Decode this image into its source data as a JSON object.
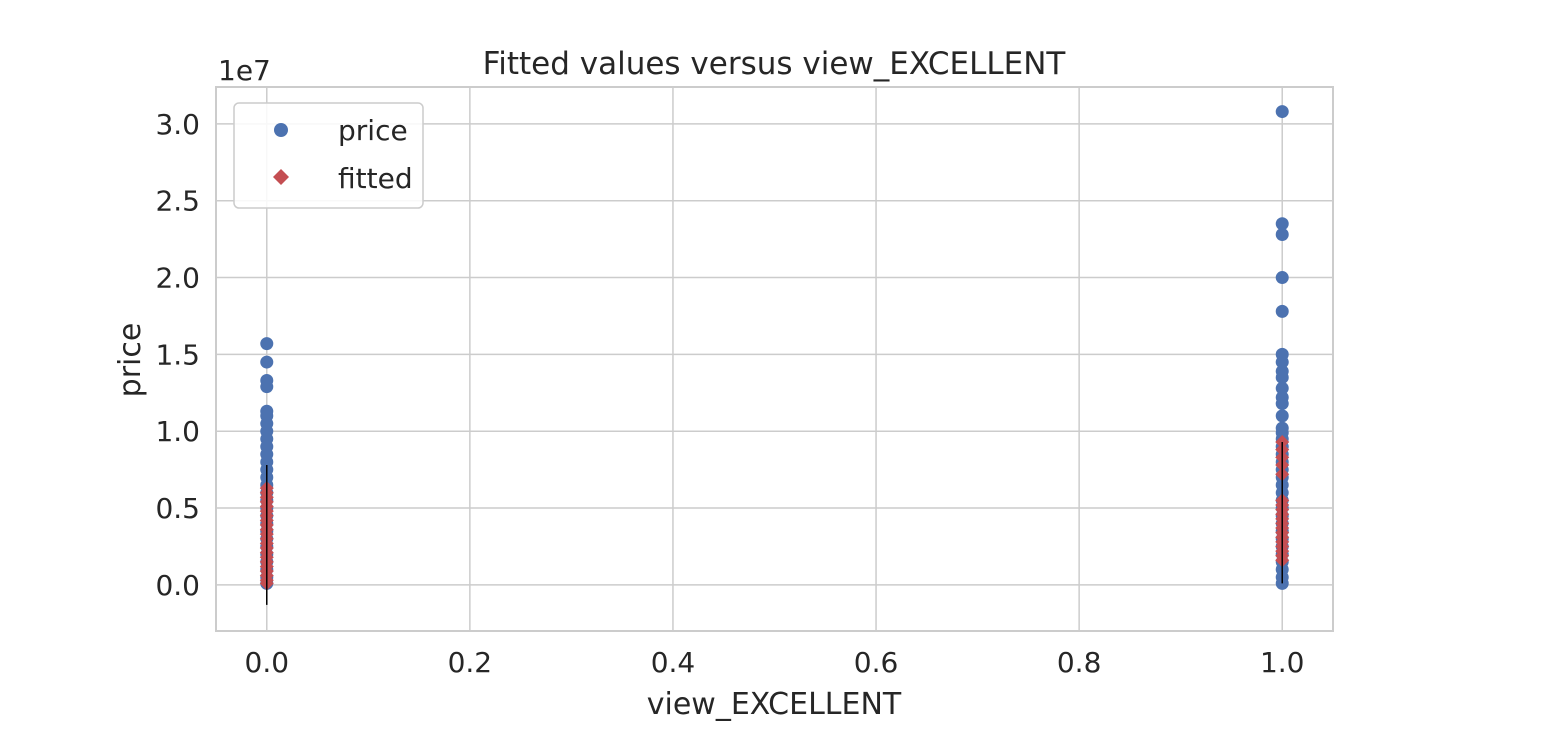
{
  "chart_data": {
    "type": "scatter",
    "title": "Fitted values versus view_EXCELLENT",
    "xlabel": "view_EXCELLENT",
    "ylabel": "price",
    "y_multiplier_label": "1e7",
    "xlim": [
      -0.05,
      1.05
    ],
    "ylim": [
      -0.3,
      3.24
    ],
    "x_ticks": [
      0.0,
      0.2,
      0.4,
      0.6,
      0.8,
      1.0
    ],
    "x_tick_labels": [
      "0.0",
      "0.2",
      "0.4",
      "0.6",
      "0.8",
      "1.0"
    ],
    "y_ticks": [
      0.0,
      0.5,
      1.0,
      1.5,
      2.0,
      2.5,
      3.0
    ],
    "y_tick_labels": [
      "0.0",
      "0.5",
      "1.0",
      "1.5",
      "2.0",
      "2.5",
      "3.0"
    ],
    "grid": true,
    "legend": {
      "position": "top-left",
      "entries": [
        {
          "name": "price",
          "marker": "circle",
          "color": "#4c72b0"
        },
        {
          "name": "fitted",
          "marker": "diamond",
          "color": "#c44e52"
        }
      ]
    },
    "series": [
      {
        "name": "price",
        "marker": "circle",
        "color": "#4c72b0",
        "points": [
          {
            "x": 0,
            "y": 1.57
          },
          {
            "x": 0,
            "y": 1.45
          },
          {
            "x": 0,
            "y": 1.33
          },
          {
            "x": 0,
            "y": 1.29
          },
          {
            "x": 0,
            "y": 1.13
          },
          {
            "x": 0,
            "y": 1.1
          },
          {
            "x": 0,
            "y": 1.05
          },
          {
            "x": 0,
            "y": 1.0
          },
          {
            "x": 0,
            "y": 0.95
          },
          {
            "x": 0,
            "y": 0.9
          },
          {
            "x": 0,
            "y": 0.85
          },
          {
            "x": 0,
            "y": 0.8
          },
          {
            "x": 0,
            "y": 0.75
          },
          {
            "x": 0,
            "y": 0.7
          },
          {
            "x": 0,
            "y": 0.65
          },
          {
            "x": 0,
            "y": 0.6
          },
          {
            "x": 0,
            "y": 0.55
          },
          {
            "x": 0,
            "y": 0.5
          },
          {
            "x": 0,
            "y": 0.45
          },
          {
            "x": 0,
            "y": 0.4
          },
          {
            "x": 0,
            "y": 0.35
          },
          {
            "x": 0,
            "y": 0.3
          },
          {
            "x": 0,
            "y": 0.25
          },
          {
            "x": 0,
            "y": 0.2
          },
          {
            "x": 0,
            "y": 0.15
          },
          {
            "x": 0,
            "y": 0.1
          },
          {
            "x": 0,
            "y": 0.05
          },
          {
            "x": 0,
            "y": 0.01
          },
          {
            "x": 1,
            "y": 3.08
          },
          {
            "x": 1,
            "y": 2.35
          },
          {
            "x": 1,
            "y": 2.28
          },
          {
            "x": 1,
            "y": 2.0
          },
          {
            "x": 1,
            "y": 1.78
          },
          {
            "x": 1,
            "y": 1.5
          },
          {
            "x": 1,
            "y": 1.45
          },
          {
            "x": 1,
            "y": 1.39
          },
          {
            "x": 1,
            "y": 1.35
          },
          {
            "x": 1,
            "y": 1.28
          },
          {
            "x": 1,
            "y": 1.22
          },
          {
            "x": 1,
            "y": 1.18
          },
          {
            "x": 1,
            "y": 1.1
          },
          {
            "x": 1,
            "y": 1.02
          },
          {
            "x": 1,
            "y": 0.99
          },
          {
            "x": 1,
            "y": 0.95
          },
          {
            "x": 1,
            "y": 0.9
          },
          {
            "x": 1,
            "y": 0.85
          },
          {
            "x": 1,
            "y": 0.8
          },
          {
            "x": 1,
            "y": 0.75
          },
          {
            "x": 1,
            "y": 0.7
          },
          {
            "x": 1,
            "y": 0.65
          },
          {
            "x": 1,
            "y": 0.6
          },
          {
            "x": 1,
            "y": 0.55
          },
          {
            "x": 1,
            "y": 0.5
          },
          {
            "x": 1,
            "y": 0.45
          },
          {
            "x": 1,
            "y": 0.4
          },
          {
            "x": 1,
            "y": 0.35
          },
          {
            "x": 1,
            "y": 0.3
          },
          {
            "x": 1,
            "y": 0.25
          },
          {
            "x": 1,
            "y": 0.2
          },
          {
            "x": 1,
            "y": 0.15
          },
          {
            "x": 1,
            "y": 0.1
          },
          {
            "x": 1,
            "y": 0.05
          },
          {
            "x": 1,
            "y": 0.01
          }
        ]
      },
      {
        "name": "fitted",
        "marker": "diamond",
        "color": "#c44e52",
        "points": [
          {
            "x": 0,
            "y": 0.63
          },
          {
            "x": 0,
            "y": 0.6
          },
          {
            "x": 0,
            "y": 0.57
          },
          {
            "x": 0,
            "y": 0.54
          },
          {
            "x": 0,
            "y": 0.51
          },
          {
            "x": 0,
            "y": 0.48
          },
          {
            "x": 0,
            "y": 0.45
          },
          {
            "x": 0,
            "y": 0.42
          },
          {
            "x": 0,
            "y": 0.39
          },
          {
            "x": 0,
            "y": 0.36
          },
          {
            "x": 0,
            "y": 0.33
          },
          {
            "x": 0,
            "y": 0.3
          },
          {
            "x": 0,
            "y": 0.27
          },
          {
            "x": 0,
            "y": 0.24
          },
          {
            "x": 0,
            "y": 0.21
          },
          {
            "x": 0,
            "y": 0.18
          },
          {
            "x": 0,
            "y": 0.15
          },
          {
            "x": 0,
            "y": 0.12
          },
          {
            "x": 0,
            "y": 0.09
          },
          {
            "x": 0,
            "y": 0.06
          },
          {
            "x": 0,
            "y": 0.03
          },
          {
            "x": 0,
            "y": 0.01
          },
          {
            "x": 1,
            "y": 0.93
          },
          {
            "x": 1,
            "y": 0.88
          },
          {
            "x": 1,
            "y": 0.83
          },
          {
            "x": 1,
            "y": 0.78
          },
          {
            "x": 1,
            "y": 0.72
          },
          {
            "x": 1,
            "y": 0.55
          },
          {
            "x": 1,
            "y": 0.52
          },
          {
            "x": 1,
            "y": 0.49
          },
          {
            "x": 1,
            "y": 0.46
          },
          {
            "x": 1,
            "y": 0.43
          },
          {
            "x": 1,
            "y": 0.4
          },
          {
            "x": 1,
            "y": 0.37
          },
          {
            "x": 1,
            "y": 0.34
          },
          {
            "x": 1,
            "y": 0.31
          },
          {
            "x": 1,
            "y": 0.28
          },
          {
            "x": 1,
            "y": 0.25
          },
          {
            "x": 1,
            "y": 0.22
          },
          {
            "x": 1,
            "y": 0.19
          },
          {
            "x": 1,
            "y": 0.16
          }
        ]
      }
    ],
    "error_lines": [
      {
        "x": 0,
        "y_low": -0.13,
        "y_high": 0.78,
        "color": "#000000"
      },
      {
        "x": 1,
        "y_low": 0.01,
        "y_high": 0.93,
        "color": "#000000"
      }
    ]
  }
}
